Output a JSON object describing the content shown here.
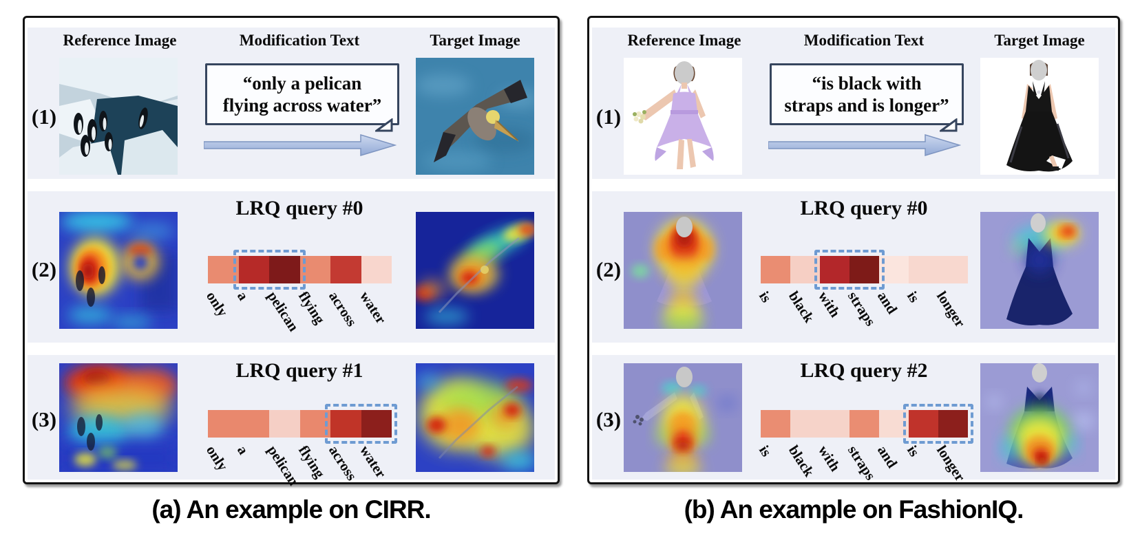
{
  "accent_colors": {
    "row_background": "#eef0f7",
    "panel_border": "#121212",
    "bubble_border": "#36455e",
    "arrow_fill": "#aabede",
    "highlight_dash": "#6e9bd2"
  },
  "panels": [
    {
      "id": "a",
      "caption": "(a) An example on CIRR.",
      "headers": {
        "reference": "Reference Image",
        "modification": "Modification Text",
        "target": "Target Image"
      },
      "rows": [
        {
          "label": "(1)",
          "modification_text": "“only a pelican flying across water”",
          "lines": [
            "“only a pelican",
            "flying across water”"
          ],
          "reference_image": "penguins standing on ice floes",
          "target_image": "pelican flying over blue water"
        },
        {
          "label": "(2)",
          "query_title": "LRQ query #0",
          "words": [
            "only",
            "a",
            "pelican",
            "flying",
            "across",
            "water"
          ],
          "cell_colors": [
            "#e98b70",
            "#b62a28",
            "#7e1a1a",
            "#e98b70",
            "#c33a32",
            "#f8d6cd"
          ],
          "highlight": [
            1,
            2
          ],
          "highlighted_words": [
            "a",
            "pelican"
          ],
          "reference_image": "penguin photo with attention heatmap hotspot on penguins at left",
          "target_image": "pelican photo with attention heatmap along the bird body"
        },
        {
          "label": "(3)",
          "query_title": "LRQ query #1",
          "words": [
            "only",
            "a",
            "pelican",
            "flying",
            "across",
            "water"
          ],
          "cell_colors": [
            "#e9886d",
            "#e9886d",
            "#f5cfc5",
            "#e9886d",
            "#c03428",
            "#8c1f1c"
          ],
          "highlight": [
            4,
            5
          ],
          "highlighted_words": [
            "across",
            "water"
          ],
          "reference_image": "penguin photo with broad heatmap over upper scene",
          "target_image": "pelican photo with widespread warm heatmap over water"
        }
      ]
    },
    {
      "id": "b",
      "caption": "(b) An example on FashionIQ.",
      "headers": {
        "reference": "Reference Image",
        "modification": "Modification Text",
        "target": "Target Image"
      },
      "rows": [
        {
          "label": "(1)",
          "modification_text": "“is black with straps and is longer”",
          "lines": [
            "“is black with",
            "straps and is longer”"
          ],
          "reference_image": "woman in short lavender dress holding bouquet",
          "target_image": "woman in long black gown"
        },
        {
          "label": "(2)",
          "query_title": "LRQ query #0",
          "words": [
            "is",
            "black",
            "with",
            "straps",
            "and",
            "is",
            "longer"
          ],
          "cell_colors": [
            "#ea8d72",
            "#f6cfc4",
            "#b3272a",
            "#7e1b18",
            "#fbe5de",
            "#f8d8cf",
            "#f8d8cf"
          ],
          "highlight": [
            2,
            3
          ],
          "highlighted_words": [
            "with",
            "straps"
          ],
          "reference_image": "lavender dress with heatmap hotspot over torso and straps",
          "target_image": "black gown with heatmap hotspot at shoulder strap"
        },
        {
          "label": "(3)",
          "query_title": "LRQ query #2",
          "words": [
            "is",
            "black",
            "with",
            "straps",
            "and",
            "is",
            "longer"
          ],
          "cell_colors": [
            "#ea8d72",
            "#f6d3c9",
            "#f6d3c9",
            "#ea8d72",
            "#f8dcd3",
            "#c0332b",
            "#8c1f1c"
          ],
          "highlight": [
            5,
            6
          ],
          "highlighted_words": [
            "is",
            "longer"
          ],
          "reference_image": "lavender dress with heatmap over skirt length",
          "target_image": "black gown with heatmap over long skirt"
        }
      ]
    }
  ]
}
